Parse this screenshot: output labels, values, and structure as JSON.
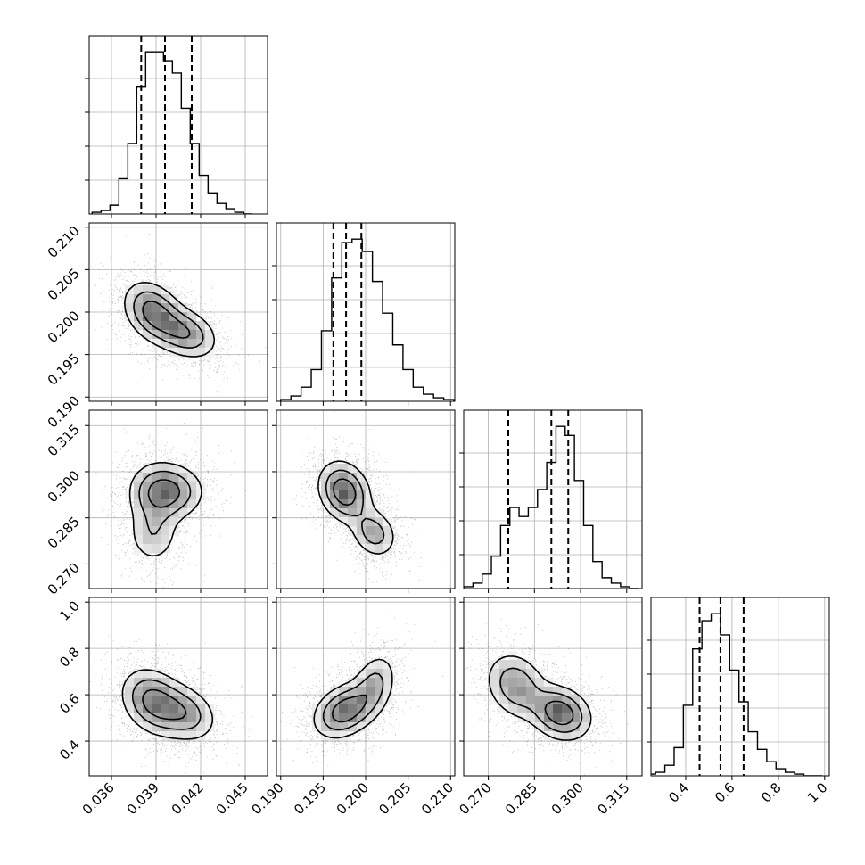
{
  "chart_data": {
    "type": "corner",
    "grid": true,
    "parameters": [
      {
        "xlim": [
          0.0345,
          0.0465
        ],
        "ylim": [
          0.1895,
          0.2105
        ],
        "ticks": [
          "0.036",
          "0.039",
          "0.042",
          "0.045"
        ],
        "tick_values": [
          0.036,
          0.039,
          0.042,
          0.045
        ]
      },
      {
        "xlim": [
          0.1895,
          0.2105
        ],
        "ylim": [
          0.1895,
          0.2105
        ],
        "ticks": [
          "0.190",
          "0.195",
          "0.200",
          "0.205",
          "0.210"
        ],
        "tick_values": [
          0.19,
          0.195,
          0.2,
          0.205,
          0.21
        ]
      },
      {
        "xlim": [
          0.262,
          0.32
        ],
        "ylim": [
          0.262,
          0.32
        ],
        "ticks": [
          "0.270",
          "0.285",
          "0.300",
          "0.315"
        ],
        "tick_values": [
          0.27,
          0.285,
          0.3,
          0.315
        ]
      },
      {
        "xlim": [
          0.25,
          1.02
        ],
        "ylim": [
          0.25,
          1.02
        ],
        "ticks": [
          "0.4",
          "0.6",
          "0.8",
          "1.0"
        ],
        "tick_values": [
          0.4,
          0.6,
          0.8,
          1.0
        ]
      }
    ],
    "histograms": [
      {
        "parameter": 0,
        "bin_centers": [
          0.035,
          0.0356,
          0.0362,
          0.0368,
          0.0374,
          0.038,
          0.0386,
          0.0392,
          0.0398,
          0.0404,
          0.041,
          0.0416,
          0.0422,
          0.0428,
          0.0434,
          0.044,
          0.0446,
          0.0452
        ],
        "counts": [
          1,
          2,
          5,
          20,
          40,
          72,
          92,
          92,
          87,
          80,
          60,
          40,
          22,
          12,
          6,
          3,
          1,
          0
        ],
        "quantiles": [
          0.038,
          0.0396,
          0.0414
        ]
      },
      {
        "parameter": 1,
        "bin_centers": [
          0.1906,
          0.1918,
          0.193,
          0.1942,
          0.1954,
          0.1966,
          0.1978,
          0.199,
          0.2002,
          0.2014,
          0.2026,
          0.2038,
          0.205,
          0.2062,
          0.2074,
          0.2086,
          0.2098
        ],
        "counts": [
          1,
          3,
          8,
          18,
          40,
          70,
          90,
          92,
          85,
          68,
          50,
          32,
          18,
          8,
          4,
          2,
          1
        ],
        "quantiles": [
          0.1962,
          0.1977,
          0.1995
        ]
      },
      {
        "parameter": 2,
        "bin_centers": [
          0.2635,
          0.2665,
          0.2695,
          0.2725,
          0.2755,
          0.2785,
          0.2815,
          0.2845,
          0.2875,
          0.2905,
          0.2935,
          0.2965,
          0.2995,
          0.3025,
          0.3055,
          0.3085,
          0.3115,
          0.3145,
          0.3175
        ],
        "counts": [
          1,
          3,
          8,
          18,
          35,
          45,
          40,
          45,
          55,
          70,
          90,
          85,
          60,
          35,
          15,
          6,
          3,
          1,
          0
        ],
        "quantiles": [
          0.2765,
          0.2905,
          0.296
        ]
      },
      {
        "parameter": 3,
        "bin_centers": [
          0.25,
          0.29,
          0.33,
          0.37,
          0.41,
          0.45,
          0.49,
          0.53,
          0.57,
          0.61,
          0.65,
          0.69,
          0.73,
          0.77,
          0.81,
          0.85,
          0.89,
          0.93,
          0.97
        ],
        "counts": [
          1,
          2,
          6,
          16,
          40,
          72,
          88,
          92,
          80,
          60,
          42,
          25,
          15,
          8,
          4,
          2,
          1,
          0,
          0
        ],
        "quantiles": [
          0.46,
          0.55,
          0.65
        ]
      }
    ],
    "joint": [
      {
        "x_param": 0,
        "y_param": 1,
        "peaks": [
          {
            "x": 0.0388,
            "y": 0.2,
            "sx": 0.0011,
            "sy": 0.002,
            "w": 1
          },
          {
            "x": 0.041,
            "y": 0.1975,
            "sx": 0.0012,
            "sy": 0.0017,
            "w": 0.8
          }
        ],
        "rho": -0.3
      },
      {
        "x_param": 0,
        "y_param": 2,
        "peaks": [
          {
            "x": 0.039,
            "y": 0.2935,
            "sx": 0.0011,
            "sy": 0.0055,
            "w": 1
          },
          {
            "x": 0.0403,
            "y": 0.2935,
            "sx": 0.0012,
            "sy": 0.005,
            "w": 0.9
          },
          {
            "x": 0.0388,
            "y": 0.28,
            "sx": 0.001,
            "sy": 0.006,
            "w": 0.7
          }
        ],
        "rho": 0
      },
      {
        "x_param": 1,
        "y_param": 2,
        "peaks": [
          {
            "x": 0.1975,
            "y": 0.2935,
            "sx": 0.0017,
            "sy": 0.0055,
            "w": 1
          },
          {
            "x": 0.201,
            "y": 0.28,
            "sx": 0.0015,
            "sy": 0.0045,
            "w": 0.6
          }
        ],
        "rho": -0.2
      },
      {
        "x_param": 0,
        "y_param": 3,
        "peaks": [
          {
            "x": 0.0388,
            "y": 0.57,
            "sx": 0.0012,
            "sy": 0.08,
            "w": 1
          },
          {
            "x": 0.041,
            "y": 0.52,
            "sx": 0.0012,
            "sy": 0.07,
            "w": 0.7
          }
        ],
        "rho": -0.25
      },
      {
        "x_param": 1,
        "y_param": 3,
        "peaks": [
          {
            "x": 0.1975,
            "y": 0.53,
            "sx": 0.002,
            "sy": 0.065,
            "w": 1
          },
          {
            "x": 0.201,
            "y": 0.64,
            "sx": 0.0015,
            "sy": 0.08,
            "w": 0.55
          }
        ],
        "rho": 0.3
      },
      {
        "x_param": 2,
        "y_param": 3,
        "peaks": [
          {
            "x": 0.2935,
            "y": 0.52,
            "sx": 0.0055,
            "sy": 0.065,
            "w": 1
          },
          {
            "x": 0.279,
            "y": 0.64,
            "sx": 0.0055,
            "sy": 0.08,
            "w": 0.7
          }
        ],
        "rho": -0.2
      }
    ]
  }
}
